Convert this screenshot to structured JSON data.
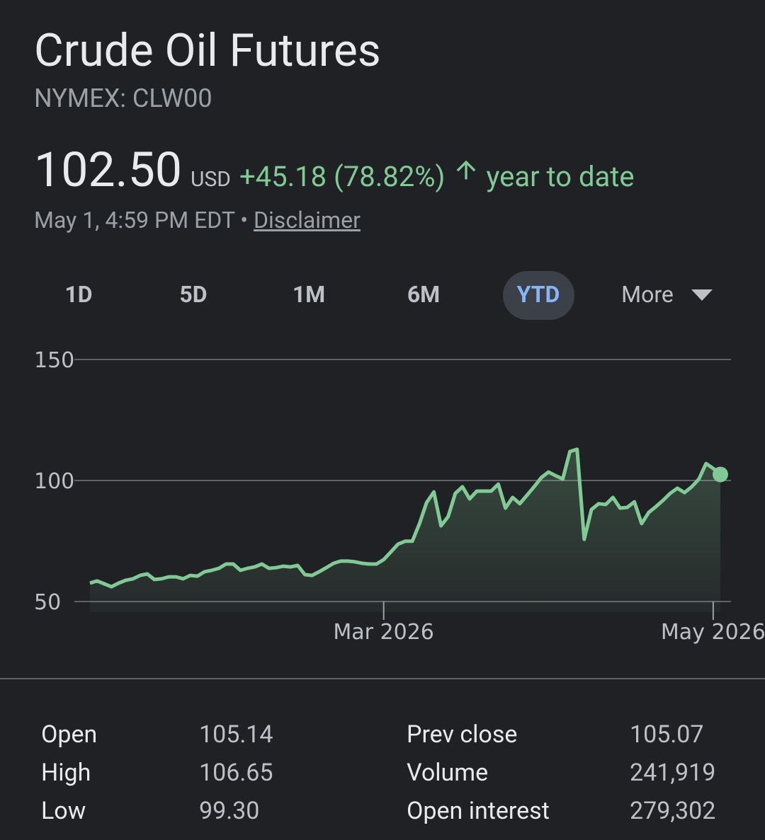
{
  "header": {
    "title": "Crude Oil Futures",
    "exchange": "NYMEX: CLW00",
    "price": "102.50",
    "currency": "USD",
    "change": "+45.18 (78.82%)",
    "period": "year to date",
    "timestamp": "May 1, 4:59 PM EDT",
    "separator": "•",
    "disclaimer": "Disclaimer"
  },
  "range_tabs": {
    "tabs": [
      "1D",
      "5D",
      "1M",
      "6M",
      "YTD",
      "More"
    ],
    "selected_index": 4
  },
  "chart_data": {
    "type": "line",
    "values": [
      57.6,
      58.5,
      57.3,
      56.1,
      57.6,
      58.8,
      59.4,
      60.8,
      61.4,
      59.1,
      59.4,
      60.2,
      60.2,
      59.4,
      60.8,
      60.5,
      62.3,
      62.9,
      63.7,
      65.5,
      65.5,
      62.9,
      63.7,
      64.3,
      65.5,
      63.7,
      64.0,
      64.6,
      64.3,
      64.9,
      61.1,
      60.8,
      62.3,
      64.0,
      65.8,
      66.7,
      66.7,
      66.4,
      65.8,
      65.5,
      65.5,
      67.3,
      70.5,
      73.7,
      74.9,
      74.9,
      82.2,
      90.9,
      95.3,
      81.3,
      85.1,
      94.7,
      97.4,
      92.4,
      95.6,
      95.6,
      95.6,
      98.5,
      88.6,
      93.0,
      90.4,
      93.9,
      97.4,
      101.2,
      103.5,
      102.0,
      100.6,
      112.0,
      112.9,
      75.7,
      88.0,
      90.4,
      90.1,
      93.0,
      88.6,
      88.9,
      91.2,
      82.2,
      86.8,
      89.2,
      91.8,
      94.7,
      96.8,
      95.0,
      97.4,
      100.6,
      107.0,
      105.0,
      102.5
    ],
    "color": "#81c995",
    "xlim": [
      0,
      88
    ],
    "xticks": [
      {
        "value": 41,
        "label": "Mar 2026"
      },
      {
        "value": 87,
        "label": "May 2026"
      }
    ],
    "ylim": [
      50,
      150
    ],
    "yticks": [
      50,
      100,
      150
    ],
    "grid": true
  },
  "stats": {
    "rows": [
      [
        "Open",
        "105.14",
        "Prev close",
        "105.07"
      ],
      [
        "High",
        "106.65",
        "Volume",
        "241,919"
      ],
      [
        "Low",
        "99.30",
        "Open interest",
        "279,302"
      ]
    ]
  }
}
